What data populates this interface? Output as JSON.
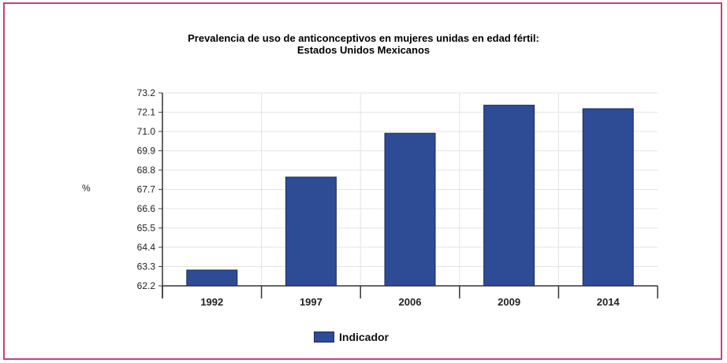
{
  "chart_data": {
    "type": "bar",
    "title": "Prevalencia de uso de anticonceptivos en mujeres unidas en edad fértil:",
    "subtitle": "Estados Unidos Mexicanos",
    "ylabel": "%",
    "xlabel": "",
    "categories": [
      "1992",
      "1997",
      "2006",
      "2009",
      "2014"
    ],
    "series": [
      {
        "name": "Indicador",
        "values": [
          63.1,
          68.4,
          70.9,
          72.5,
          72.3
        ]
      }
    ],
    "ylim": [
      62.2,
      73.2
    ],
    "yticks": [
      "62.2",
      "63.3",
      "64.4",
      "65.5",
      "66.6",
      "67.7",
      "68.8",
      "69.9",
      "71.0",
      "72.1",
      "73.2"
    ],
    "grid": "both",
    "legend": "bottom-center",
    "bar_color": "#2e4b95",
    "bar_edge_color": "#1a2b5e"
  }
}
